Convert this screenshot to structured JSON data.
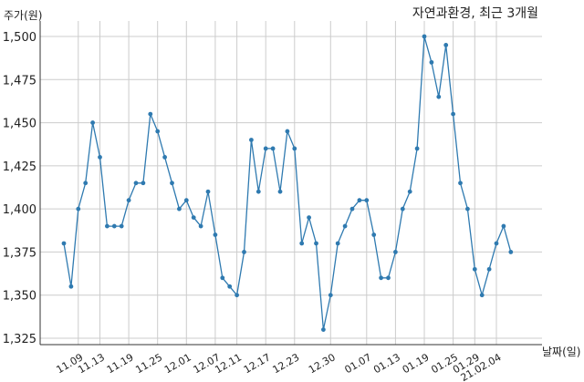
{
  "chart_data": {
    "type": "line",
    "title": "자연과환경, 최근 3개월",
    "ylabel": "주가(원)",
    "xlabel": "날짜(일)",
    "ylim": [
      1325,
      1500
    ],
    "yticks": [
      1325,
      1350,
      1375,
      1400,
      1425,
      1450,
      1475,
      1500
    ],
    "ytick_labels": [
      "1,325",
      "1,350",
      "1,375",
      "1,400",
      "1,425",
      "1,450",
      "1,475",
      "1,500"
    ],
    "xtick_labels": [
      "11.09",
      "11.13",
      "11.19",
      "11.25",
      "12.01",
      "12.07",
      "12.11",
      "12.17",
      "12.23",
      "12.30",
      "01.07",
      "01.13",
      "01.19",
      "01.25",
      "01.29",
      "21.02.04"
    ],
    "xtick_index": [
      2,
      5,
      9,
      13,
      17,
      21,
      24,
      28,
      32,
      37,
      42,
      46,
      50,
      54,
      57,
      60
    ],
    "grid": true,
    "color": "#2f7ab0",
    "series": [
      {
        "values": [
          1380,
          1355,
          1400,
          1415,
          1450,
          1430,
          1390,
          1390,
          1390,
          1405,
          1415,
          1415,
          1455,
          1445,
          1430,
          1415,
          1400,
          1405,
          1395,
          1390,
          1410,
          1385,
          1360,
          1355,
          1350,
          1375,
          1440,
          1410,
          1435,
          1435,
          1410,
          1445,
          1435,
          1380,
          1395,
          1380,
          1330,
          1350,
          1380,
          1390,
          1400,
          1405,
          1405,
          1385,
          1360,
          1360,
          1375,
          1400,
          1410,
          1435,
          1500,
          1485,
          1465,
          1495,
          1455,
          1415,
          1400,
          1365,
          1350,
          1365,
          1380,
          1390,
          1375
        ]
      }
    ]
  }
}
